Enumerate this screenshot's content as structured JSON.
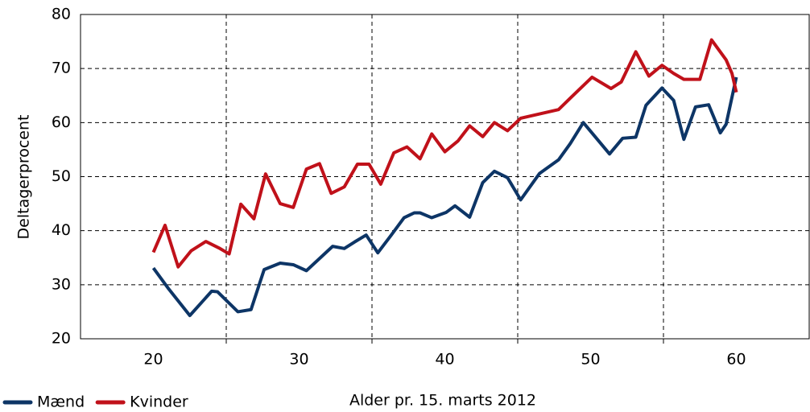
{
  "chart_data": {
    "type": "line",
    "x_label": "Alder pr. 15. marts 2012",
    "y_label": "Deltagerprocent",
    "xlim": [
      15,
      65
    ],
    "xticks": [
      20,
      30,
      40,
      50,
      60
    ],
    "xgrid": [
      25,
      35,
      45,
      55
    ],
    "ylim": [
      20,
      80
    ],
    "yticks": [
      20,
      30,
      40,
      50,
      60,
      70,
      80
    ],
    "grid": true,
    "legend": "bottom-left",
    "series": [
      {
        "name": "Mænd",
        "color": "#0d3566",
        "x": [
          20,
          21.0,
          22.5,
          24.0,
          24.4,
          25.8,
          26.7,
          27.6,
          28.7,
          29.6,
          30.5,
          32.3,
          33.1,
          33.8,
          34.6,
          35.4,
          36.3,
          37.2,
          37.9,
          38.3,
          39.1,
          40.1,
          40.7,
          41.7,
          42.6,
          43.4,
          44.3,
          45.2,
          46.5,
          47.8,
          48.6,
          49.5,
          51.3,
          52.2,
          53.1,
          53.8,
          54.9,
          55.7,
          56.4,
          57.2,
          58.1,
          58.9,
          59.3,
          60.0
        ],
        "values": [
          33.1,
          29.4,
          24.3,
          28.8,
          28.7,
          25.0,
          25.4,
          32.8,
          34.0,
          33.7,
          32.6,
          37.1,
          36.7,
          37.9,
          39.2,
          35.9,
          39.1,
          42.4,
          43.3,
          43.3,
          42.4,
          43.4,
          44.6,
          42.5,
          48.9,
          51.0,
          49.8,
          45.7,
          50.6,
          53.1,
          56.1,
          60.0,
          54.2,
          57.1,
          57.3,
          63.2,
          66.4,
          64.1,
          56.9,
          62.9,
          63.3,
          58.1,
          59.7,
          68.4
        ]
      },
      {
        "name": "Kvinder",
        "color": "#c0111a",
        "x": [
          20,
          20.8,
          21.7,
          22.6,
          23.6,
          24.5,
          25.2,
          26.0,
          26.9,
          27.7,
          28.7,
          29.6,
          30.5,
          31.4,
          32.2,
          33.1,
          34.0,
          34.8,
          35.6,
          36.5,
          37.4,
          38.3,
          39.1,
          40.0,
          40.9,
          41.7,
          42.6,
          43.4,
          44.3,
          45.2,
          47.8,
          48.6,
          50.1,
          51.4,
          52.1,
          53.1,
          54.0,
          54.9,
          55.7,
          56.4,
          57.5,
          58.3,
          59.3,
          59.7,
          60.0
        ],
        "values": [
          36.0,
          41.0,
          33.3,
          36.3,
          38.0,
          36.8,
          35.7,
          44.9,
          42.2,
          50.5,
          45.0,
          44.3,
          51.4,
          52.4,
          46.9,
          48.1,
          52.3,
          52.3,
          48.6,
          54.4,
          55.5,
          53.3,
          57.9,
          54.6,
          56.6,
          59.4,
          57.4,
          60.0,
          58.5,
          60.8,
          62.4,
          64.5,
          68.4,
          66.3,
          67.5,
          73.1,
          68.6,
          70.6,
          69.1,
          68.0,
          68.0,
          75.3,
          71.6,
          69.1,
          65.6
        ]
      }
    ]
  }
}
